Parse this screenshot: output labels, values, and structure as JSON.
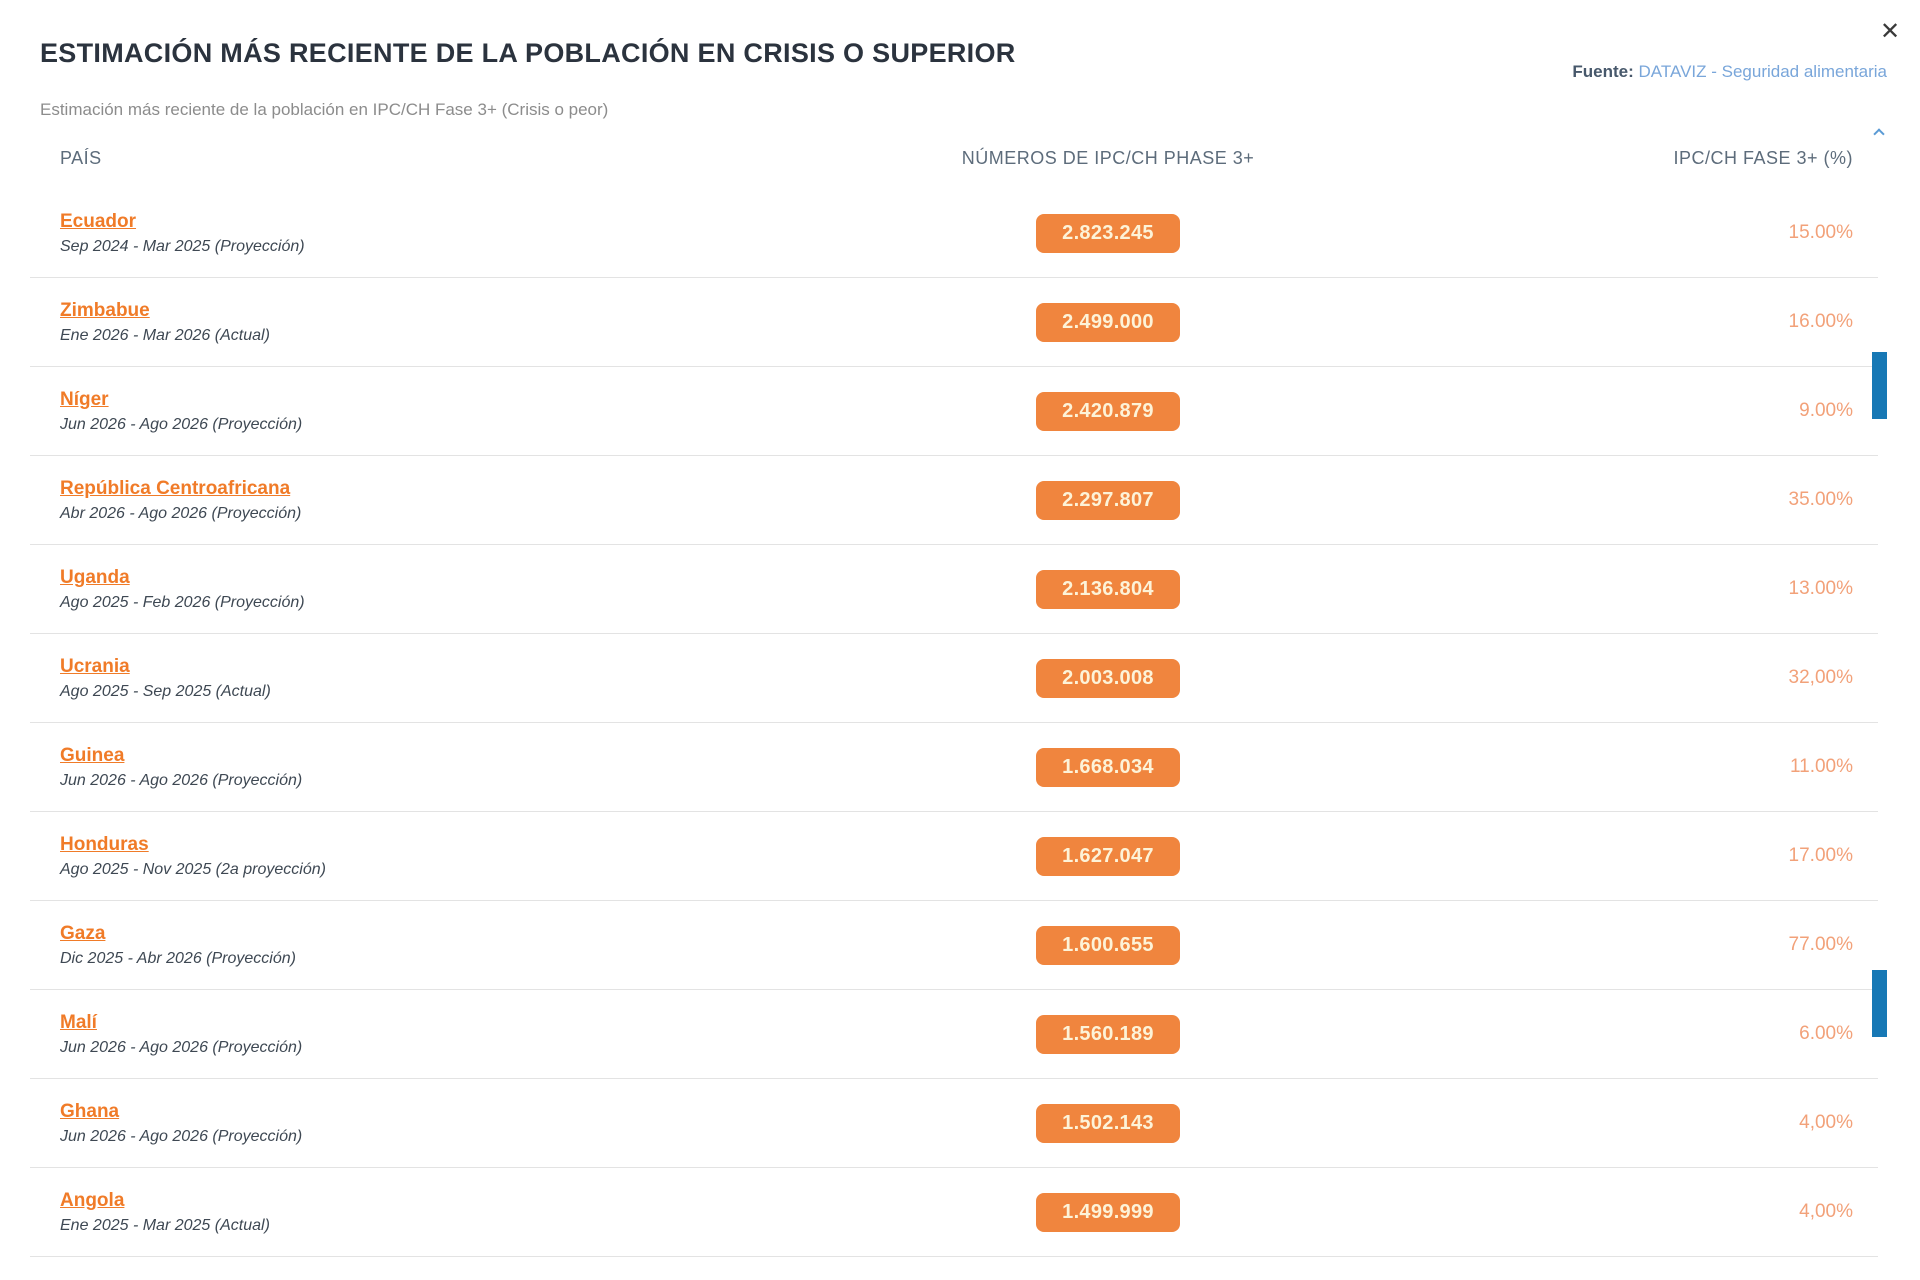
{
  "modal": {
    "title": "ESTIMACIÓN MÁS RECIENTE DE LA POBLACIÓN EN CRISIS O SUPERIOR",
    "subtitle": "Estimación más reciente de la población en IPC/CH Fase 3+ (Crisis o peor)",
    "source": {
      "label": "Fuente:",
      "link_text": "DATAVIZ - Seguridad alimentaria"
    },
    "icons": {
      "close": "✕",
      "scroll_up": "chevron-up"
    }
  },
  "table": {
    "headers": {
      "country": "PAÍS",
      "numbers": "NÚMEROS DE IPC/CH PHASE 3+",
      "percent": "IPC/CH FASE 3+ (%)"
    },
    "rows": [
      {
        "country": "Ecuador",
        "period": "Sep 2024 - Mar 2025 (Proyección)",
        "number": "2.823.245",
        "percent": "15.00%"
      },
      {
        "country": "Zimbabue",
        "period": "Ene 2026 - Mar 2026 (Actual)",
        "number": "2.499.000",
        "percent": "16.00%"
      },
      {
        "country": "Níger",
        "period": "Jun 2026 - Ago 2026 (Proyección)",
        "number": "2.420.879",
        "percent": "9.00%"
      },
      {
        "country": "República Centroafricana",
        "period": "Abr 2026 - Ago 2026 (Proyección)",
        "number": "2.297.807",
        "percent": "35.00%"
      },
      {
        "country": "Uganda",
        "period": "Ago 2025 - Feb 2026 (Proyección)",
        "number": "2.136.804",
        "percent": "13.00%"
      },
      {
        "country": "Ucrania",
        "period": "Ago 2025 - Sep 2025 (Actual)",
        "number": "2.003.008",
        "percent": "32,00%"
      },
      {
        "country": "Guinea",
        "period": "Jun 2026 - Ago 2026 (Proyección)",
        "number": "1.668.034",
        "percent": "11.00%"
      },
      {
        "country": "Honduras",
        "period": "Ago 2025 - Nov 2025 (2a proyección)",
        "number": "1.627.047",
        "percent": "17.00%"
      },
      {
        "country": "Gaza",
        "period": "Dic 2025 - Abr 2026 (Proyección)",
        "number": "1.600.655",
        "percent": "77.00%"
      },
      {
        "country": "Malí",
        "period": "Jun 2026 - Ago 2026 (Proyección)",
        "number": "1.560.189",
        "percent": "6.00%"
      },
      {
        "country": "Ghana",
        "period": "Jun 2026 - Ago 2026 (Proyección)",
        "number": "1.502.143",
        "percent": "4,00%"
      },
      {
        "country": "Angola",
        "period": "Ene 2025 - Mar 2025 (Actual)",
        "number": "1.499.999",
        "percent": "4,00%"
      }
    ]
  },
  "colors": {
    "accent_orange": "#f07b28",
    "badge_orange": "#f0853e",
    "badge_text": "#fdf3d8",
    "percent_orange": "#f2a179",
    "source_label": "#47586b",
    "link_blue": "#79a6da",
    "scrollbar_blue": "#1778b5",
    "divider": "#e3e3e3",
    "title_text": "#2b333e",
    "header_text": "#5d6c7b"
  }
}
